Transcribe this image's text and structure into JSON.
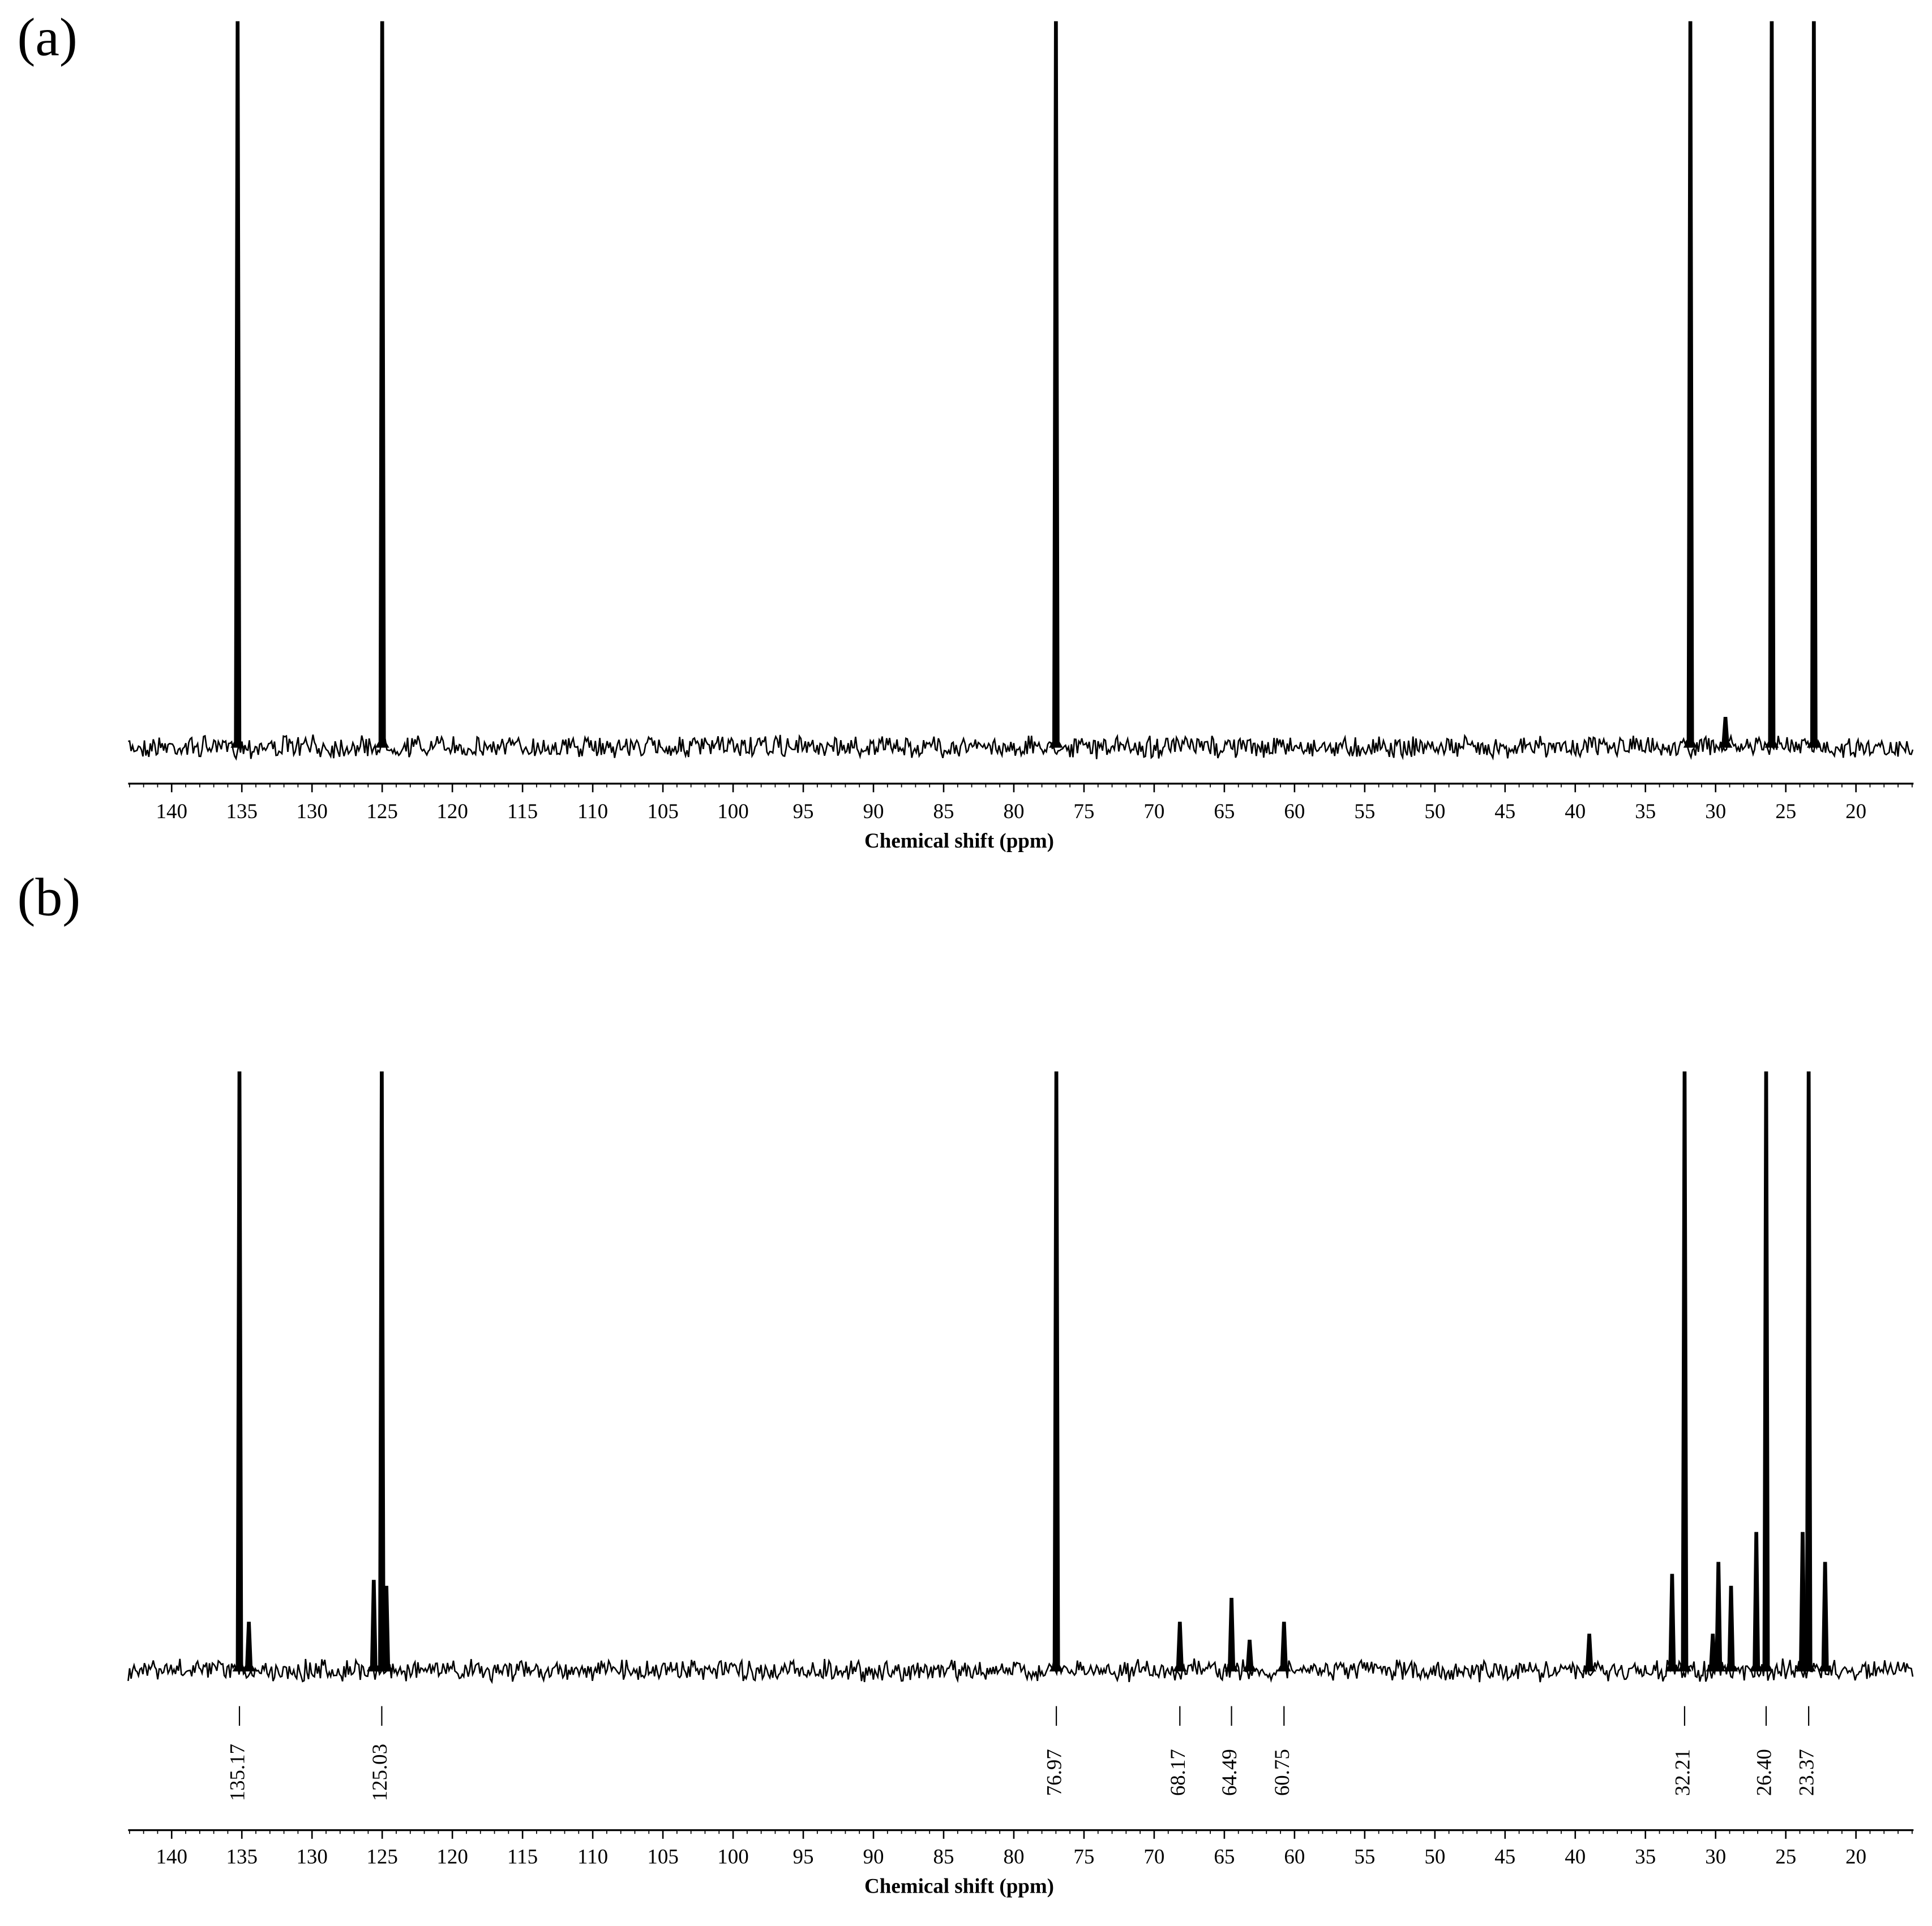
{
  "chart_data": [
    {
      "type": "line",
      "title": "(a)",
      "xlabel": "Chemical shift (ppm)",
      "color": "#000000",
      "x": [
        135.3,
        125.0,
        77.0,
        31.8,
        29.3,
        26.0,
        23.0
      ],
      "values": [
        100,
        100,
        100,
        100,
        4,
        100,
        100
      ],
      "xlim": [
        143.1,
        15.9
      ],
      "ylim": [
        0,
        100
      ],
      "xticks": [
        140,
        135,
        130,
        125,
        120,
        115,
        110,
        105,
        100,
        95,
        90,
        85,
        80,
        75,
        70,
        65,
        60,
        55,
        50,
        45,
        40,
        35,
        30,
        25,
        20
      ]
    },
    {
      "type": "line",
      "title": "(b)",
      "xlabel": "Chemical shift (ppm)",
      "color": "#000000",
      "x": [
        135.17,
        134.5,
        125.6,
        125.03,
        124.7,
        76.97,
        68.17,
        64.49,
        63.2,
        60.75,
        39.0,
        33.1,
        32.21,
        30.2,
        29.8,
        28.9,
        27.1,
        26.4,
        23.8,
        23.37,
        22.2
      ],
      "values": [
        100,
        8,
        15,
        100,
        14,
        100,
        8,
        12,
        5,
        8,
        6,
        16,
        100,
        6,
        18,
        14,
        23,
        100,
        23,
        100,
        18
      ],
      "x_labels": [
        "135.17",
        null,
        null,
        "125.03",
        null,
        "76.97",
        "68.17",
        "64.49",
        null,
        "60.75",
        null,
        null,
        "32.21",
        null,
        null,
        null,
        null,
        "26.40",
        null,
        "23.37",
        null
      ],
      "xlim": [
        143.1,
        15.9
      ],
      "ylim": [
        0,
        100
      ],
      "xticks": [
        140,
        135,
        130,
        125,
        120,
        115,
        110,
        105,
        100,
        95,
        90,
        85,
        80,
        75,
        70,
        65,
        60,
        55,
        50,
        45,
        40,
        35,
        30,
        25,
        20
      ]
    }
  ]
}
